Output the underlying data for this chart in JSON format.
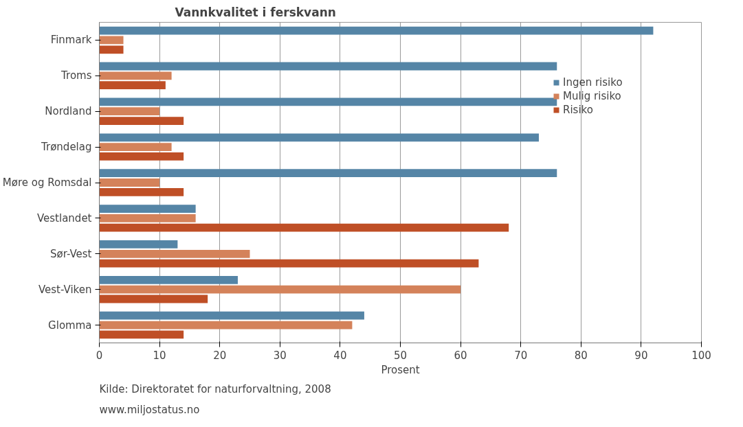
{
  "chart_data": {
    "type": "bar",
    "orientation": "horizontal",
    "title": "Vannkvalitet i ferskvann",
    "xlabel": "Prosent",
    "categories": [
      "Finmark",
      "Troms",
      "Nordland",
      "Trøndelag",
      "Møre og Romsdal",
      "Vestlandet",
      "Sør-Vest",
      "Vest-Viken",
      "Glomma"
    ],
    "series": [
      {
        "name": "Ingen risiko",
        "color": "#5585a6",
        "values": [
          92,
          76,
          76,
          73,
          76,
          16,
          13,
          23,
          44
        ]
      },
      {
        "name": "Mulig risiko",
        "color": "#d4825a",
        "values": [
          4,
          12,
          10,
          12,
          10,
          16,
          25,
          60,
          42
        ]
      },
      {
        "name": "Risiko",
        "color": "#bf4f26",
        "values": [
          4,
          11,
          14,
          14,
          14,
          68,
          63,
          18,
          14
        ]
      }
    ],
    "xlim": [
      0,
      100
    ],
    "xticks": [
      0,
      10,
      20,
      30,
      40,
      50,
      60,
      70,
      80,
      90,
      100
    ],
    "grid": "x",
    "legend": "right",
    "annotations": [
      "Kilde: Direktoratet for naturforvaltning, 2008",
      "www.miljostatus.no"
    ]
  }
}
